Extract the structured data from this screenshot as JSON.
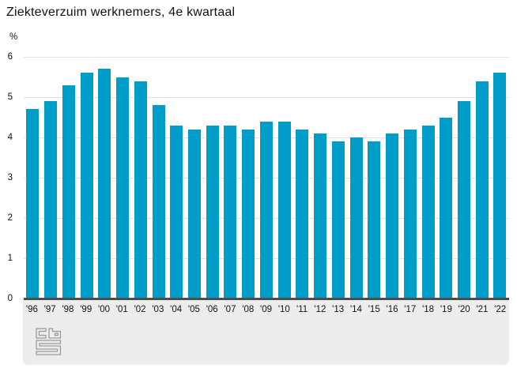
{
  "title": "Ziekteverzuim werknemers, 4e kwartaal",
  "y_axis": {
    "unit": "%",
    "ticks": [
      6,
      5,
      4,
      3,
      2,
      1,
      0
    ]
  },
  "chart_data": {
    "type": "bar",
    "title": "Ziekteverzuim werknemers, 4e kwartaal",
    "xlabel": "",
    "ylabel": "%",
    "ylim": [
      0,
      6
    ],
    "grid": true,
    "legend": "none",
    "bar_color": "#009DC9",
    "categories": [
      "'96",
      "'97",
      "'98",
      "'99",
      "'00",
      "'01",
      "'02",
      "'03",
      "'04",
      "'05",
      "'06",
      "'07",
      "'08",
      "'09",
      "'10",
      "'11",
      "'12",
      "'13",
      "'14",
      "'15",
      "'16",
      "'17",
      "'18",
      "'19",
      "'20",
      "'21",
      "'22"
    ],
    "values": [
      4.7,
      4.9,
      5.3,
      5.6,
      5.7,
      5.5,
      5.4,
      4.8,
      4.3,
      4.2,
      4.3,
      4.3,
      4.2,
      4.4,
      4.4,
      4.2,
      4.1,
      3.9,
      4.0,
      3.9,
      4.1,
      4.2,
      4.3,
      4.5,
      4.9,
      5.4,
      5.6
    ]
  },
  "footer": {
    "logo": "cbs-logo"
  },
  "colors": {
    "bar": "#009DC9",
    "gridline": "#e2e2e2",
    "axis_line": "#4d4d4d",
    "footer_bg": "#EDEDED",
    "logo_stroke": "#9b9b9b",
    "text": "#121212",
    "background": "#ffffff"
  }
}
